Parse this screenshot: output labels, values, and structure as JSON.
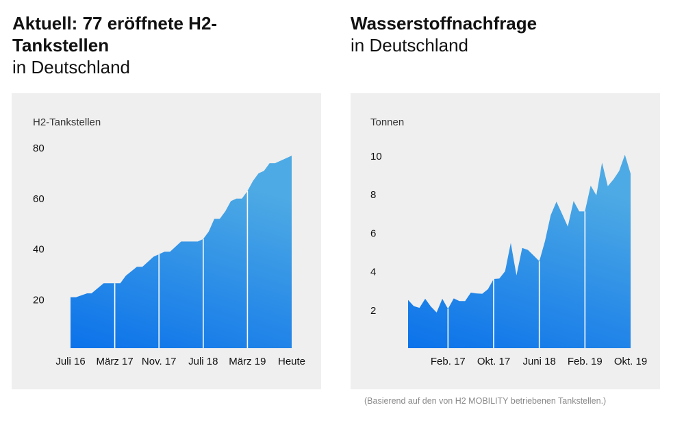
{
  "left": {
    "title_bold": "Aktuell: 77 eröffnete H2-Tankstellen",
    "title_normal": "in Deutschland"
  },
  "right": {
    "title_bold": "Wasserstoffnachfrage",
    "title_normal": "in Deutschland"
  },
  "footnote": "(Basierend auf den von H2 MOBILITY betriebenen Tankstellen.)",
  "colors": {
    "fill_bottom": "#0b72ea",
    "fill_top": "#4eaae4",
    "panel": "#efefef"
  },
  "chart_data": [
    {
      "type": "area",
      "ylabel": "H2-Tankstellen",
      "yticks": [
        20,
        40,
        60,
        80
      ],
      "ylim": [
        0,
        80
      ],
      "xlabel": "",
      "x_unit": "months since Juli 16",
      "xlim": [
        0,
        40
      ],
      "xticks": [
        {
          "x": 0,
          "label": "Juli 16"
        },
        {
          "x": 8,
          "label": "März 17"
        },
        {
          "x": 16,
          "label": "Nov. 17"
        },
        {
          "x": 24,
          "label": "Juli 18"
        },
        {
          "x": 32,
          "label": "März 19"
        },
        {
          "x": 40,
          "label": "Heute"
        }
      ],
      "dividers": [
        8,
        16,
        24,
        32
      ],
      "x": [
        0,
        1,
        3,
        3.8,
        6,
        8,
        9,
        10,
        12,
        13,
        15,
        16,
        17,
        18,
        20,
        23,
        24,
        25,
        26,
        27,
        28,
        29,
        30,
        31,
        32,
        33,
        34,
        35,
        36,
        37,
        40
      ],
      "values": [
        21,
        21,
        22.5,
        22.5,
        26.5,
        26.5,
        26.5,
        29.5,
        33,
        33,
        37,
        38,
        39,
        39,
        43,
        43,
        44,
        47,
        52,
        52,
        55,
        59,
        60,
        60,
        63,
        67,
        70,
        71,
        74,
        74,
        77
      ]
    },
    {
      "type": "area",
      "ylabel": "Tonnen",
      "yticks": [
        2,
        4,
        6,
        8,
        10
      ],
      "ylim": [
        0,
        10
      ],
      "xlabel": "",
      "x_unit": "months since Juli 16",
      "xlim": [
        0,
        39
      ],
      "xticks": [
        {
          "x": 7,
          "label": "Feb. 17"
        },
        {
          "x": 15,
          "label": "Okt. 17"
        },
        {
          "x": 23,
          "label": "Juni 18"
        },
        {
          "x": 31,
          "label": "Feb. 19"
        },
        {
          "x": 39,
          "label": "Okt. 19"
        }
      ],
      "dividers": [
        7,
        15,
        23,
        31
      ],
      "x": [
        0,
        1,
        2,
        3,
        4,
        5,
        6,
        7,
        8,
        9,
        10,
        11,
        12,
        13,
        14,
        15,
        16,
        17,
        18,
        19,
        20,
        21,
        22,
        23,
        24,
        25,
        26,
        27,
        28,
        29,
        30,
        31,
        32,
        33,
        34,
        35,
        36,
        37,
        38,
        39
      ],
      "values": [
        2.54,
        2.22,
        2.13,
        2.6,
        2.2,
        1.89,
        2.6,
        2.08,
        2.62,
        2.48,
        2.48,
        2.92,
        2.88,
        2.86,
        3.1,
        3.63,
        3.65,
        4.03,
        5.5,
        3.82,
        5.24,
        5.14,
        4.85,
        4.55,
        5.6,
        6.94,
        7.64,
        7.0,
        6.35,
        7.68,
        7.14,
        7.14,
        8.48,
        7.97,
        9.67,
        8.45,
        8.8,
        9.24,
        10.08,
        9.1
      ]
    }
  ]
}
